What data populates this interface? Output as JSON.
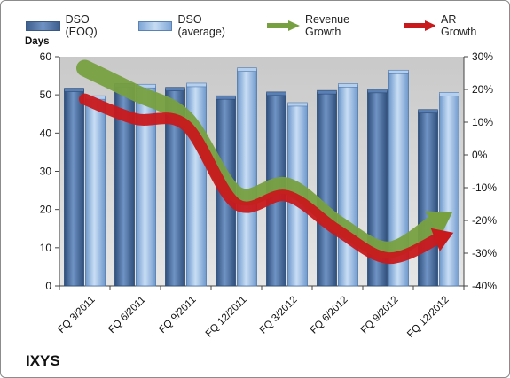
{
  "chart_data": {
    "type": "bar",
    "ticker": "IXYS",
    "ylabel": "Days",
    "categories": [
      "FQ 3/2011",
      "FQ 6/2011",
      "FQ 9/2011",
      "FQ 12/2011",
      "FQ 3/2012",
      "FQ 6/2012",
      "FQ 9/2012",
      "FQ 12/2012"
    ],
    "series": [
      {
        "name": "DSO (EOQ)",
        "axis": "left",
        "kind": "bar",
        "color": "#4a6fa5",
        "values": [
          51.3,
          52.5,
          51.5,
          49.3,
          50.3,
          50.7,
          51.0,
          45.7
        ]
      },
      {
        "name": "DSO (average)",
        "axis": "left",
        "kind": "bar",
        "color": "#8db4e2",
        "values": [
          49.3,
          52.3,
          52.6,
          56.6,
          47.5,
          52.5,
          56.0,
          50.2
        ]
      },
      {
        "name": "Revenue Growth",
        "axis": "right",
        "kind": "arrow",
        "color": "#77a040",
        "values": [
          0.265,
          0.19,
          0.11,
          -0.12,
          -0.095,
          -0.21,
          -0.29,
          -0.2
        ]
      },
      {
        "name": "AR Growth",
        "axis": "right",
        "kind": "arrow",
        "color": "#c8191c",
        "values": [
          0.17,
          0.11,
          0.09,
          -0.15,
          -0.125,
          -0.23,
          -0.315,
          -0.255
        ]
      }
    ],
    "yleft": {
      "min": 0,
      "max": 60,
      "ticks": [
        0,
        10,
        20,
        30,
        40,
        50,
        60
      ]
    },
    "yright": {
      "min": -0.4,
      "max": 0.3,
      "ticks": [
        "30%",
        "20%",
        "10%",
        "0%",
        "-10%",
        "-20%",
        "-30%",
        "-40%"
      ]
    },
    "legend_position": "top",
    "grid": false
  }
}
